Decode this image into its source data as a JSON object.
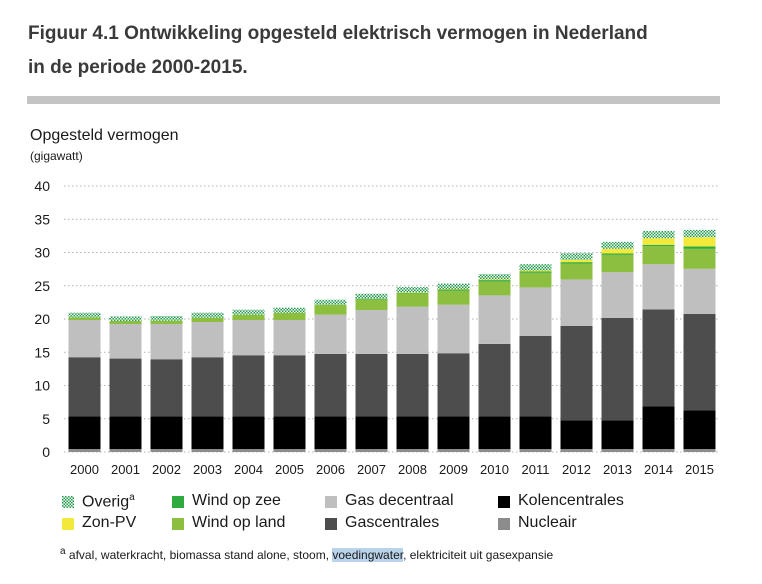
{
  "figure": {
    "title_line1": "Figuur 4.1 Ontwikkeling opgesteld elektrisch vermogen in Nederland",
    "title_line2": "in de periode 2000-2015."
  },
  "colors": {
    "nucleair": "#8c8c8c",
    "kolencentrales": "#000000",
    "gascentrales": "#4d4d4d",
    "gas_decentraal": "#bfbfbf",
    "wind_op_land": "#8cbf3f",
    "wind_op_zee": "#2eaa3f",
    "zon_pv": "#f2e93b",
    "overig": "#1f9e4a",
    "grid": "#b3b3b3",
    "title_rule": "#c4c4c4"
  },
  "footnote": {
    "marker": "a",
    "text_before": " afval, waterkracht, biomassa stand alone, stoom, ",
    "highlighted": "voedingwater",
    "text_after": ", elektriciteit uit gasexpansie"
  },
  "chart_data": {
    "type": "bar",
    "stacked": true,
    "ylabel": "Opgesteld vermogen",
    "yunit": "(gigawatt)",
    "ylim": [
      0,
      40
    ],
    "yticks": [
      0,
      5,
      10,
      15,
      20,
      25,
      30,
      35,
      40
    ],
    "grid": "horizontal-dotted",
    "legend_position": "bottom",
    "categories": [
      "2000",
      "2001",
      "2002",
      "2003",
      "2004",
      "2005",
      "2006",
      "2007",
      "2008",
      "2009",
      "2010",
      "2011",
      "2012",
      "2013",
      "2014",
      "2015"
    ],
    "series": [
      {
        "name": "Nucleair",
        "color_key": "nucleair",
        "values": [
          0.45,
          0.45,
          0.45,
          0.45,
          0.45,
          0.45,
          0.45,
          0.45,
          0.45,
          0.45,
          0.45,
          0.45,
          0.45,
          0.45,
          0.45,
          0.45
        ]
      },
      {
        "name": "Kolencentrales",
        "color_key": "kolencentrales",
        "values": [
          4.9,
          4.9,
          4.9,
          4.9,
          4.9,
          4.9,
          4.9,
          4.9,
          4.9,
          4.9,
          4.9,
          4.9,
          4.3,
          4.3,
          6.4,
          5.8
        ]
      },
      {
        "name": "Gascentrales",
        "color_key": "gascentrales",
        "values": [
          8.9,
          8.7,
          8.6,
          8.9,
          9.2,
          9.2,
          9.4,
          9.4,
          9.4,
          9.5,
          10.9,
          12.1,
          14.2,
          15.4,
          14.6,
          14.5
        ]
      },
      {
        "name": "Gas decentraal",
        "color_key": "gas_decentraal",
        "values": [
          5.6,
          5.2,
          5.3,
          5.3,
          5.3,
          5.3,
          5.9,
          6.6,
          7.1,
          7.3,
          7.3,
          7.3,
          7.0,
          6.9,
          6.8,
          6.8
        ]
      },
      {
        "name": "Wind op land",
        "color_key": "wind_op_land",
        "values": [
          0.4,
          0.45,
          0.5,
          0.65,
          0.8,
          1.1,
          1.5,
          1.6,
          2.0,
          2.1,
          2.1,
          2.2,
          2.4,
          2.6,
          2.7,
          3.0
        ]
      },
      {
        "name": "Wind op zee",
        "color_key": "wind_op_zee",
        "values": [
          0,
          0,
          0,
          0,
          0,
          0,
          0,
          0.1,
          0.1,
          0.2,
          0.2,
          0.2,
          0.2,
          0.2,
          0.2,
          0.35
        ]
      },
      {
        "name": "Zon-PV",
        "color_key": "zon_pv",
        "values": [
          0,
          0,
          0,
          0,
          0,
          0,
          0,
          0,
          0.05,
          0.07,
          0.1,
          0.15,
          0.35,
          0.7,
          1.0,
          1.4
        ]
      },
      {
        "name": "Overig",
        "name_sup": "a",
        "color_key": "overig",
        "values": [
          0.7,
          0.7,
          0.7,
          0.75,
          0.75,
          0.75,
          0.75,
          0.75,
          0.8,
          0.8,
          0.8,
          0.95,
          1.0,
          1.05,
          1.1,
          1.1
        ]
      }
    ]
  },
  "legend": [
    {
      "name": "Overig",
      "sup": "a",
      "color_key": "overig",
      "pattern": true
    },
    {
      "name": "Wind op zee",
      "color_key": "wind_op_zee"
    },
    {
      "name": "Gas decentraal",
      "color_key": "gas_decentraal"
    },
    {
      "name": "Kolencentrales",
      "color_key": "kolencentrales"
    },
    {
      "name": "Zon-PV",
      "color_key": "zon_pv"
    },
    {
      "name": "Wind op land",
      "color_key": "wind_op_land"
    },
    {
      "name": "Gascentrales",
      "color_key": "gascentrales"
    },
    {
      "name": "Nucleair",
      "color_key": "nucleair"
    }
  ]
}
